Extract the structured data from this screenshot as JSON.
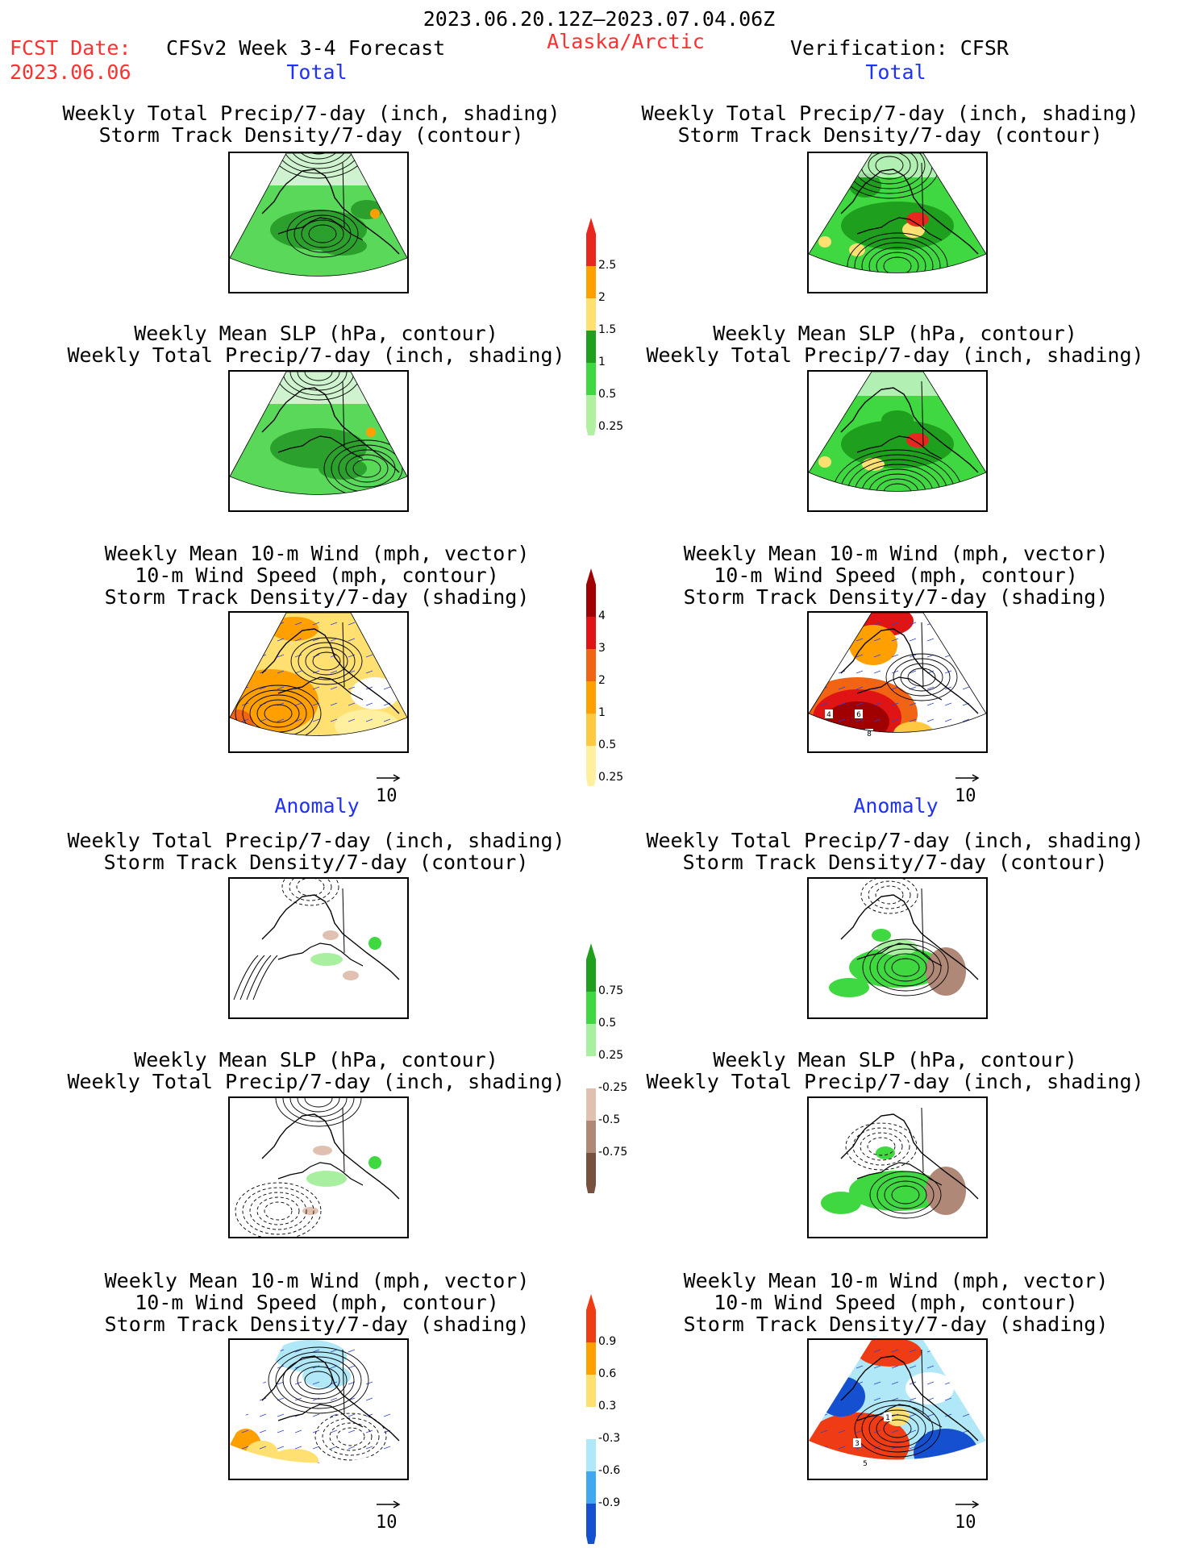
{
  "header": {
    "period": "2023.06.20.12Z—2023.07.04.06Z",
    "fcst_label": "FCST Date:",
    "fcst_date": "2023.06.06",
    "model": "CFSv2 Week 3-4 Forecast",
    "region": "Alaska/Arctic",
    "verification": "Verification: CFSR"
  },
  "sections": {
    "total": "Total",
    "anomaly": "Anomaly"
  },
  "titles": {
    "precip_track": [
      "Weekly Total Precip/7-day (inch, shading)",
      "Storm Track Density/7-day (contour)"
    ],
    "slp_precip": [
      "Weekly Mean SLP (hPa, contour)",
      "Weekly Total Precip/7-day (inch, shading)"
    ],
    "wind_track": [
      "Weekly Mean 10-m Wind (mph, vector)",
      "10-m Wind Speed (mph, contour)",
      "Storm Track Density/7-day (shading)"
    ]
  },
  "vector_key": "10",
  "colorbars": [
    {
      "id": "precip-total",
      "labels": [
        "2.5",
        "2",
        "1.5",
        "1",
        "0.5",
        "0.25"
      ],
      "colors": [
        "#e8281e",
        "#ffa000",
        "#ffe070",
        "#1e9f1e",
        "#40d840",
        "#b0f0a0"
      ]
    },
    {
      "id": "track-total",
      "labels": [
        "4",
        "3",
        "2",
        "1",
        "0.5",
        "0.25"
      ],
      "colors": [
        "#a00000",
        "#e01414",
        "#f06414",
        "#ffa000",
        "#ffc840",
        "#fff0a0"
      ]
    },
    {
      "id": "precip-anom",
      "labels": [
        "0.75",
        "0.5",
        "0.25",
        "-0.25",
        "-0.5",
        "-0.75"
      ],
      "colors": [
        "#1ea01e",
        "#40d840",
        "#a8f0a0",
        "#ffffff",
        "#e0c0b0",
        "#b08878",
        "#785040"
      ]
    },
    {
      "id": "track-anom",
      "labels": [
        "0.9",
        "0.6",
        "0.3",
        "-0.3",
        "-0.6",
        "-0.9"
      ],
      "colors": [
        "#f03c14",
        "#ffa000",
        "#ffe070",
        "#ffffff",
        "#b0e8f8",
        "#40a8f0",
        "#1450d0"
      ]
    }
  ],
  "map_contour_labels": {
    "obs_track_total": [
      "4",
      "6",
      "8"
    ],
    "obs_track_anom": [
      "1",
      "3",
      "5"
    ]
  }
}
